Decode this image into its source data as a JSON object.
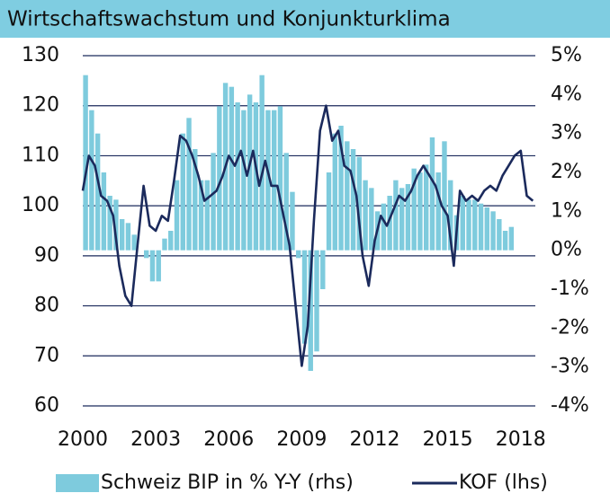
{
  "chart_data": {
    "type": "combo",
    "title": "Wirtschaftswachstum und Konjunkturklima",
    "xlim": [
      2000,
      2018.6
    ],
    "xticks": [
      2000,
      2003,
      2006,
      2009,
      2012,
      2015,
      2018
    ],
    "ylim": [
      60,
      130
    ],
    "yticks": [
      60,
      70,
      80,
      90,
      100,
      110,
      120,
      130
    ],
    "y2lim": [
      -4,
      5
    ],
    "y2ticks": [
      {
        "value": -4,
        "label": "-4%"
      },
      {
        "value": -3,
        "label": "-3%"
      },
      {
        "value": -2,
        "label": "-2%"
      },
      {
        "value": -1,
        "label": "-1%"
      },
      {
        "value": 0,
        "label": "0%"
      },
      {
        "value": 1,
        "label": "1%"
      },
      {
        "value": 2,
        "label": "2%"
      },
      {
        "value": 3,
        "label": "3%"
      },
      {
        "value": 4,
        "label": "4%"
      },
      {
        "value": 5,
        "label": "5%"
      }
    ],
    "grid": true,
    "series": [
      {
        "name": "Schweiz BIP in % Y-Y (rhs)",
        "type": "bar",
        "axis": "y2",
        "color": "#7ecbdd",
        "x": [
          2000,
          2000.25,
          2000.5,
          2000.75,
          2001,
          2001.25,
          2001.5,
          2001.75,
          2002,
          2002.25,
          2002.5,
          2002.75,
          2003,
          2003.25,
          2003.5,
          2003.75,
          2004,
          2004.25,
          2004.5,
          2004.75,
          2005,
          2005.25,
          2005.5,
          2005.75,
          2006,
          2006.25,
          2006.5,
          2006.75,
          2007,
          2007.25,
          2007.5,
          2007.75,
          2008,
          2008.25,
          2008.5,
          2008.75,
          2009,
          2009.25,
          2009.5,
          2009.75,
          2010,
          2010.25,
          2010.5,
          2010.75,
          2011,
          2011.25,
          2011.5,
          2011.75,
          2012,
          2012.25,
          2012.5,
          2012.75,
          2013,
          2013.25,
          2013.5,
          2013.75,
          2014,
          2014.25,
          2014.5,
          2014.75,
          2015,
          2015.25,
          2015.5,
          2015.75,
          2016,
          2016.25,
          2016.5,
          2016.75,
          2017,
          2017.25,
          2017.5
        ],
        "values": [
          4.5,
          3.6,
          3.0,
          2.0,
          1.4,
          1.3,
          0.8,
          0.7,
          0.4,
          0.0,
          -0.2,
          -0.8,
          -0.8,
          0.3,
          0.5,
          1.8,
          3.0,
          3.4,
          2.6,
          1.8,
          1.8,
          2.5,
          3.7,
          4.3,
          4.2,
          3.8,
          3.6,
          4.0,
          3.8,
          4.5,
          3.6,
          3.6,
          3.7,
          2.5,
          1.5,
          -0.2,
          -2.4,
          -3.1,
          -2.6,
          -1.0,
          2.0,
          3.0,
          3.2,
          2.8,
          2.6,
          2.4,
          1.8,
          1.6,
          1.0,
          1.2,
          1.4,
          1.8,
          1.6,
          1.7,
          2.1,
          2.0,
          2.2,
          2.9,
          2.0,
          2.8,
          1.8,
          0.9,
          1.4,
          1.3,
          1.3,
          1.2,
          1.1,
          1.0,
          0.8,
          0.5,
          0.6
        ]
      },
      {
        "name": "KOF (lhs)",
        "type": "line",
        "axis": "y",
        "color": "#1b2a5c",
        "x": [
          2000,
          2000.25,
          2000.5,
          2000.75,
          2001,
          2001.25,
          2001.5,
          2001.75,
          2002,
          2002.25,
          2002.5,
          2002.75,
          2003,
          2003.25,
          2003.5,
          2003.75,
          2004,
          2004.25,
          2004.5,
          2004.75,
          2005,
          2005.25,
          2005.5,
          2005.75,
          2006,
          2006.25,
          2006.5,
          2006.75,
          2007,
          2007.25,
          2007.5,
          2007.75,
          2008,
          2008.25,
          2008.5,
          2008.75,
          2009,
          2009.25,
          2009.5,
          2009.75,
          2010,
          2010.25,
          2010.5,
          2010.75,
          2011,
          2011.25,
          2011.5,
          2011.75,
          2012,
          2012.25,
          2012.5,
          2012.75,
          2013,
          2013.25,
          2013.5,
          2013.75,
          2014,
          2014.25,
          2014.5,
          2014.75,
          2015,
          2015.25,
          2015.5,
          2015.75,
          2016,
          2016.25,
          2016.5,
          2016.75,
          2017,
          2017.25,
          2017.5,
          2017.75,
          2018,
          2018.25,
          2018.5
        ],
        "values": [
          103,
          110,
          108,
          102,
          101,
          98,
          88,
          82,
          80,
          92,
          104,
          96,
          95,
          98,
          97,
          105,
          114,
          113,
          110,
          106,
          101,
          102,
          103,
          106,
          110,
          108,
          111,
          106,
          111,
          104,
          109,
          104,
          104,
          98,
          92,
          80,
          68,
          76,
          97,
          115,
          120,
          113,
          115,
          108,
          107,
          102,
          90,
          84,
          93,
          98,
          96,
          99,
          102,
          101,
          103,
          106,
          108,
          106,
          104,
          100,
          98,
          88,
          103,
          101,
          102,
          101,
          103,
          104,
          103,
          106,
          108,
          110,
          111,
          102,
          101
        ]
      }
    ]
  }
}
